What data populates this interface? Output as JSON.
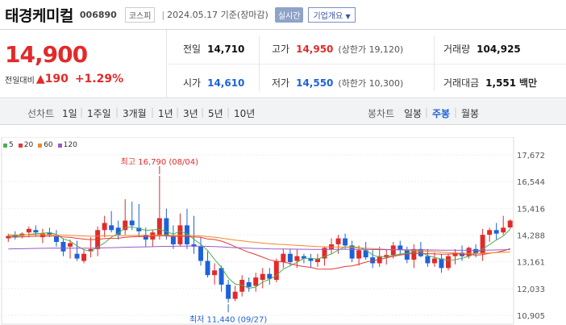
{
  "header": {
    "company": "태경케미컬",
    "code": "006890",
    "market": "코스피",
    "date": "2024.05.17",
    "date_suffix": "기준(장마감)",
    "realtime": "실시간",
    "company_info": "기업개요"
  },
  "summary": {
    "price": "14,900",
    "change_label": "전일대비",
    "change_value": "190",
    "change_pct": "+1.29%",
    "prev_close_label": "전일",
    "prev_close": "14,710",
    "high_label": "고가",
    "high": "14,950",
    "upper_limit_label": "(상한가",
    "upper_limit": "19,120)",
    "volume_label": "거래량",
    "volume": "104,925",
    "open_label": "시가",
    "open": "14,610",
    "low_label": "저가",
    "low": "14,550",
    "lower_limit_label": "(하한가",
    "lower_limit": "10,300)",
    "amount_label": "거래대금",
    "amount": "1,551",
    "amount_unit": "백만"
  },
  "tabs": {
    "line_chart": "선차트",
    "line_periods": [
      "1일",
      "1주일",
      "3개월",
      "1년",
      "3년",
      "5년",
      "10년"
    ],
    "candle_chart": "봉차트",
    "candle_periods": [
      "일봉",
      "주봉",
      "월봉"
    ],
    "selected": "주봉"
  },
  "chart_data": {
    "type": "candlestick",
    "interval": "weekly",
    "moving_averages": [
      {
        "name": "5",
        "color": "#4caf50"
      },
      {
        "name": "20",
        "color": "#e53935"
      },
      {
        "name": "60",
        "color": "#ef8a26"
      },
      {
        "name": "120",
        "color": "#9c59c6"
      }
    ],
    "y_ticks": [
      "17,672",
      "16,544",
      "15,416",
      "14,288",
      "13,161",
      "12,033",
      "10,905"
    ],
    "ylim": [
      10905,
      17672
    ],
    "annotations": {
      "high": {
        "label": "최고 16,790 (08/04)",
        "value": 16790
      },
      "low": {
        "label": "최저 11,440 (09/27)",
        "value": 11440
      }
    },
    "candles": [
      [
        14150,
        14350,
        14000,
        14250
      ],
      [
        14300,
        14450,
        14100,
        14200
      ],
      [
        14250,
        14400,
        14150,
        14350
      ],
      [
        14400,
        14650,
        14200,
        14550
      ],
      [
        14500,
        14700,
        14250,
        14400
      ],
      [
        14200,
        14550,
        13950,
        14350
      ],
      [
        14400,
        14600,
        14200,
        14300
      ],
      [
        14250,
        14500,
        13800,
        14000
      ],
      [
        14000,
        14150,
        13400,
        13600
      ],
      [
        13800,
        14100,
        13300,
        13950
      ],
      [
        13500,
        14050,
        13200,
        13300
      ],
      [
        13200,
        13700,
        13100,
        13500
      ],
      [
        13600,
        14200,
        13350,
        13700
      ],
      [
        13700,
        14650,
        13400,
        14500
      ],
      [
        14500,
        15100,
        14200,
        14800
      ],
      [
        14700,
        15300,
        14400,
        14500
      ],
      [
        14600,
        14900,
        14100,
        14300
      ],
      [
        14500,
        15800,
        14300,
        14900
      ],
      [
        14900,
        15700,
        14500,
        14700
      ],
      [
        14600,
        15600,
        14200,
        14450
      ],
      [
        14300,
        14600,
        13800,
        14100
      ],
      [
        14100,
        14500,
        13800,
        14400
      ],
      [
        14300,
        16790,
        14100,
        15000
      ],
      [
        15000,
        15400,
        14100,
        14250
      ],
      [
        14250,
        14700,
        13700,
        13900
      ],
      [
        13900,
        15200,
        13800,
        14700
      ],
      [
        14700,
        15400,
        13700,
        13900
      ],
      [
        13900,
        15100,
        13500,
        13800
      ],
      [
        13800,
        14200,
        13000,
        13200
      ],
      [
        13200,
        13600,
        12500,
        12600
      ],
      [
        12600,
        13100,
        12200,
        12800
      ],
      [
        12900,
        13000,
        11900,
        12200
      ],
      [
        12200,
        12400,
        11440,
        11600
      ],
      [
        11600,
        12150,
        11500,
        11900
      ],
      [
        11900,
        12600,
        11700,
        12400
      ],
      [
        12300,
        12500,
        11900,
        12100
      ],
      [
        12150,
        12700,
        11900,
        12500
      ],
      [
        12400,
        12900,
        12050,
        12650
      ],
      [
        12650,
        12900,
        12200,
        12450
      ],
      [
        12400,
        13300,
        12300,
        13200
      ],
      [
        13150,
        13700,
        12900,
        13500
      ],
      [
        13500,
        13700,
        13000,
        13150
      ],
      [
        13200,
        13700,
        12900,
        13400
      ],
      [
        13400,
        13500,
        13100,
        13300
      ],
      [
        13300,
        13500,
        12900,
        13200
      ],
      [
        13150,
        13500,
        12950,
        13300
      ],
      [
        13300,
        13800,
        13000,
        13750
      ],
      [
        13700,
        14150,
        13500,
        13900
      ],
      [
        13900,
        14300,
        13500,
        14150
      ],
      [
        14150,
        14350,
        13700,
        13850
      ],
      [
        13850,
        14050,
        13150,
        13300
      ],
      [
        13300,
        13850,
        13000,
        13650
      ],
      [
        13650,
        14000,
        13250,
        13350
      ],
      [
        13350,
        13650,
        12900,
        13100
      ],
      [
        13100,
        13800,
        12950,
        13400
      ],
      [
        13350,
        13700,
        13050,
        13450
      ],
      [
        13450,
        14000,
        13300,
        13850
      ],
      [
        13850,
        14050,
        13450,
        13650
      ],
      [
        13650,
        13800,
        13100,
        13250
      ],
      [
        13250,
        13900,
        12900,
        13700
      ],
      [
        13700,
        14000,
        13350,
        13400
      ],
      [
        13400,
        13700,
        12950,
        13100
      ],
      [
        13100,
        13550,
        12950,
        13300
      ],
      [
        13300,
        13500,
        12700,
        12900
      ],
      [
        12900,
        13500,
        12800,
        13400
      ],
      [
        13400,
        13700,
        13050,
        13550
      ],
      [
        13550,
        13850,
        13200,
        13400
      ],
      [
        13400,
        13800,
        13300,
        13750
      ],
      [
        13700,
        13900,
        13350,
        13500
      ],
      [
        13500,
        14550,
        13200,
        14300
      ],
      [
        14300,
        14600,
        14000,
        14500
      ],
      [
        14500,
        14800,
        14100,
        14350
      ],
      [
        14400,
        15100,
        14300,
        14600
      ],
      [
        14610,
        14950,
        14550,
        14900
      ]
    ]
  }
}
